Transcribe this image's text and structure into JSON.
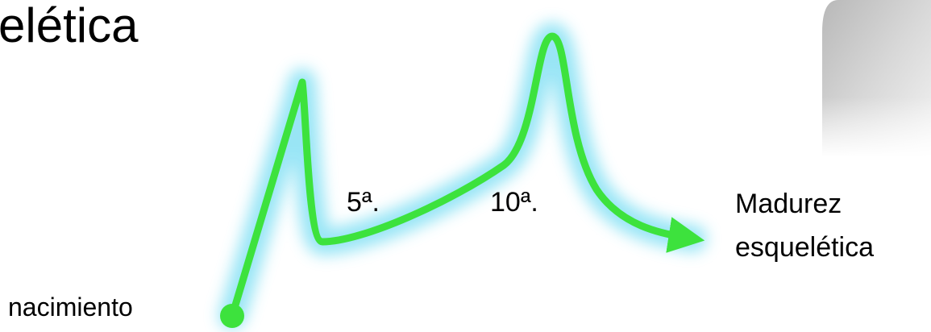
{
  "title": "elética",
  "points": [
    {
      "label": "nacimiento"
    },
    {
      "label": "5ª."
    },
    {
      "label": "10ª."
    },
    {
      "lines": [
        "Madurez",
        "esquelética"
      ]
    }
  ]
}
